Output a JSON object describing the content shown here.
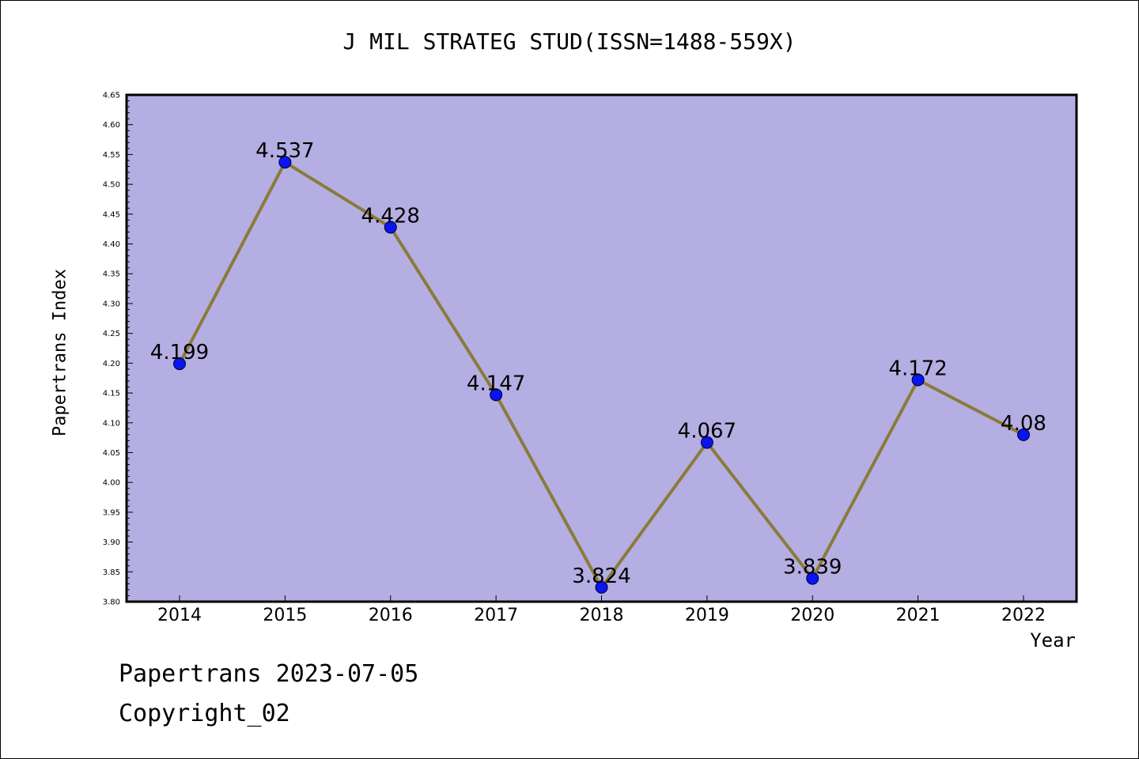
{
  "title": "J MIL STRATEG STUD(ISSN=1488-559X)",
  "footer": {
    "date_line": "Papertrans 2023-07-05",
    "copyright": "Copyright_02"
  },
  "colors": {
    "plot_background": "#b4aee2",
    "line": "#8b7a3a",
    "marker": "#0a14f0"
  },
  "chart_data": {
    "type": "line",
    "title": "J MIL STRATEG STUD(ISSN=1488-559X)",
    "xlabel": "Year",
    "ylabel": "Papertrans Index",
    "categories": [
      "2014",
      "2015",
      "2016",
      "2017",
      "2018",
      "2019",
      "2020",
      "2021",
      "2022"
    ],
    "series": [
      {
        "values": [
          4.199,
          4.537,
          4.428,
          4.147,
          3.824,
          4.067,
          3.839,
          4.172,
          4.08
        ],
        "labels": [
          "4.199",
          "4.537",
          "4.428",
          "4.147",
          "3.824",
          "4.067",
          "3.839",
          "4.172",
          "4.08"
        ]
      }
    ],
    "ylim": [
      3.8,
      4.65
    ],
    "yticks": [
      "3.80",
      "3.85",
      "3.90",
      "3.95",
      "4.00",
      "4.05",
      "4.10",
      "4.15",
      "4.20",
      "4.25",
      "4.30",
      "4.35",
      "4.40",
      "4.45",
      "4.50",
      "4.55",
      "4.60",
      "4.65"
    ],
    "grid": false,
    "legend": "none"
  }
}
